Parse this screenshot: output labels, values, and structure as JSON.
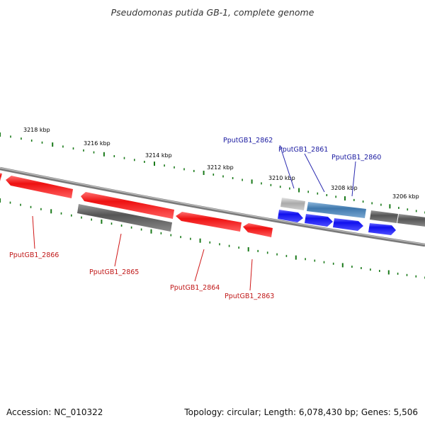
{
  "title": "Pseudomonas putida GB-1, complete genome",
  "footer": {
    "accession": "Accession: NC_010322",
    "summary": "Topology: circular; Length: 6,078,430 bp; Genes: 5,506"
  },
  "colors": {
    "tick": "#1a7a1a",
    "backbone": "#8a8a8a",
    "forward_label": "#1a1aa0",
    "reverse_label": "#c01818",
    "red_gene": "#ee1111",
    "blue_gene": "#1111ee",
    "gray_gene": "#666666",
    "steel_gene": "#4f86b8",
    "light_gene": "#bbbbbb"
  },
  "ticks": [
    {
      "label": "3218 kbp"
    },
    {
      "label": "3216 kbp"
    },
    {
      "label": "3214 kbp"
    },
    {
      "label": "3212 kbp"
    },
    {
      "label": "3210 kbp"
    },
    {
      "label": "3208 kbp"
    },
    {
      "label": "3206 kbp"
    }
  ],
  "gene_labels": [
    {
      "id": "PputGB1_2862",
      "strand": "forward"
    },
    {
      "id": "PputGB1_2861",
      "strand": "forward"
    },
    {
      "id": "PputGB1_2860",
      "strand": "forward"
    },
    {
      "id": "PputGB1_2866",
      "strand": "reverse"
    },
    {
      "id": "PputGB1_2865",
      "strand": "reverse"
    },
    {
      "id": "PputGB1_2864",
      "strand": "reverse"
    },
    {
      "id": "PputGB1_2863",
      "strand": "reverse"
    }
  ]
}
